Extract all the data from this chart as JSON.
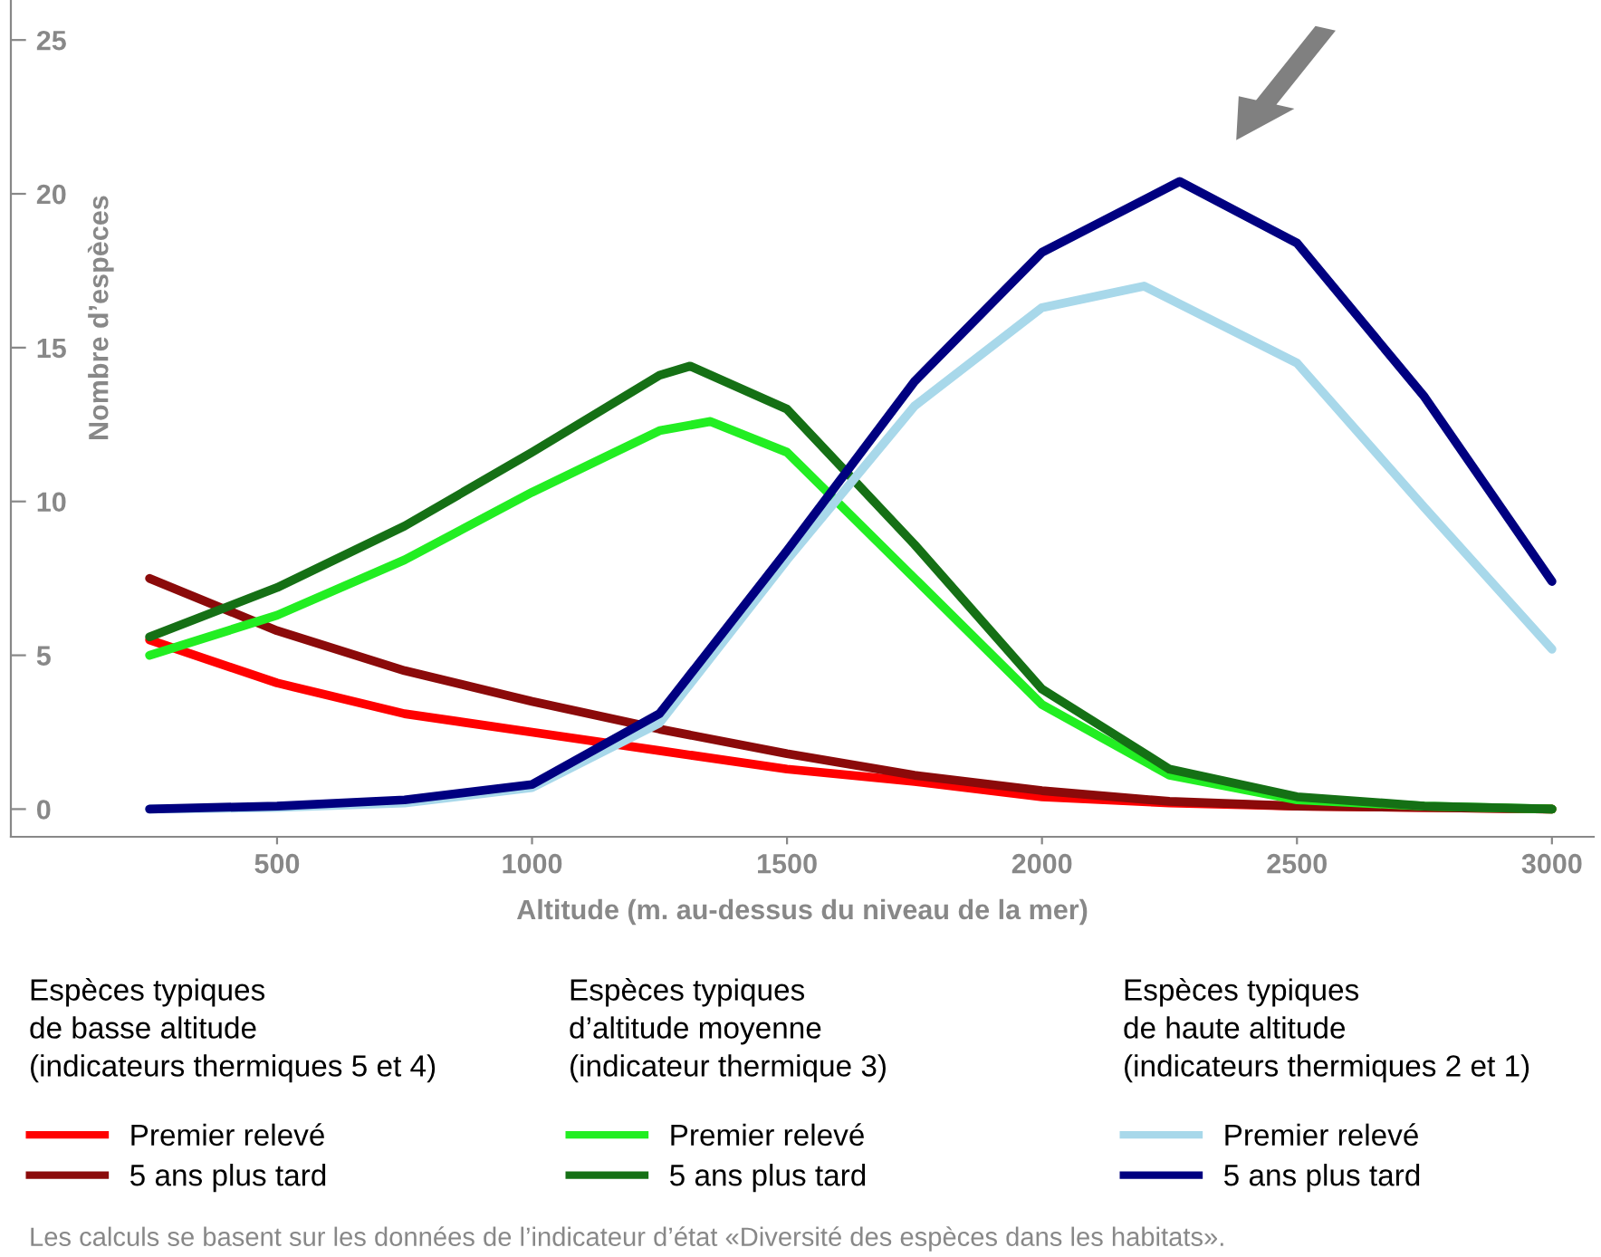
{
  "chart_data": {
    "type": "line",
    "xlabel": "Altitude (m. au-dessus du niveau de la mer)",
    "ylabel": "Nombre d’espèces",
    "xlim": [
      -22,
      3082
    ],
    "xticks": [
      500,
      1000,
      1500,
      2000,
      2500,
      3000
    ],
    "ylim": [
      -0.9,
      26.3
    ],
    "yticks": [
      0,
      5,
      10,
      15,
      20,
      25
    ],
    "grid": false,
    "legend": "bottom",
    "marker": "none",
    "line_style": "solid",
    "x": [
      250,
      500,
      750,
      1000,
      1250,
      1500,
      1750,
      2000,
      2250,
      2500,
      2750,
      3000
    ],
    "series": [
      {
        "name": "Premier relevé",
        "color": "#ff0000",
        "values": [
          5.5,
          4.1,
          3.1,
          2.5,
          1.9,
          1.3,
          0.9,
          0.4,
          0.2,
          0.1,
          0.05,
          0
        ]
      },
      {
        "name": "5 ans plus tard",
        "color": "#8b0a0a",
        "values": [
          7.5,
          5.8,
          4.5,
          3.5,
          2.6,
          1.8,
          1.1,
          0.6,
          0.25,
          0.1,
          0.05,
          0
        ]
      },
      {
        "name": "Premier relevé",
        "color": "#22ee22",
        "x": [
          250,
          500,
          750,
          1000,
          1250,
          1350,
          1500,
          1750,
          2000,
          2250,
          2500,
          2750,
          3000
        ],
        "values": [
          5.0,
          6.3,
          8.1,
          10.3,
          12.3,
          12.6,
          11.6,
          7.5,
          3.4,
          1.1,
          0.3,
          0.1,
          0
        ]
      },
      {
        "name": "5 ans plus tard",
        "color": "#157015",
        "x": [
          250,
          500,
          750,
          1000,
          1250,
          1310,
          1500,
          1750,
          2000,
          2250,
          2500,
          2750,
          3000
        ],
        "values": [
          5.6,
          7.2,
          9.2,
          11.6,
          14.1,
          14.4,
          13.0,
          8.6,
          3.9,
          1.3,
          0.4,
          0.1,
          0
        ]
      },
      {
        "name": "Premier relevé",
        "color": "#a8d8ea",
        "x": [
          250,
          500,
          750,
          1000,
          1250,
          1500,
          1750,
          2000,
          2200,
          2500,
          2750,
          3000
        ],
        "values": [
          0,
          0.05,
          0.2,
          0.7,
          2.8,
          8.1,
          13.1,
          16.3,
          17.0,
          14.5,
          9.8,
          5.2
        ]
      },
      {
        "name": "5 ans plus tard",
        "color": "#000080",
        "x": [
          250,
          500,
          750,
          1000,
          1250,
          1500,
          1750,
          2000,
          2270,
          2500,
          2750,
          3000
        ],
        "values": [
          0,
          0.1,
          0.3,
          0.8,
          3.1,
          8.4,
          13.9,
          18.1,
          20.4,
          18.4,
          13.4,
          7.4
        ]
      }
    ],
    "annotations": [
      "Espèces typiques\nde basse altitude\n(indicateurs thermiques 5 et 4)",
      "Espèces typiques\nd’altitude moyenne\n(indicateur thermique 3)",
      "Espèces typiques\nde haute altitude\n(indicateurs thermiques 2 et 1)",
      "Les calculs se basent sur les données de l’indicateur d’état «Diversité des espèces dans les habitats»."
    ]
  }
}
